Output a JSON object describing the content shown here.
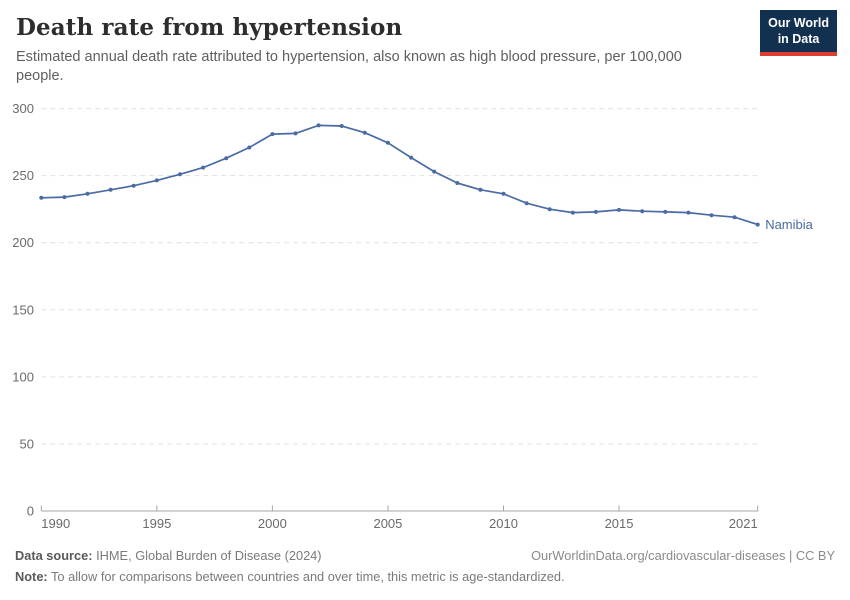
{
  "header": {
    "title": "Death rate from hypertension",
    "subtitle": "Estimated annual death rate attributed to hypertension, also known as high blood pressure, per 100,000 people."
  },
  "logo": {
    "line1": "Our World",
    "line2": "in Data",
    "bg_color": "#12304f",
    "accent_color": "#dc3e32"
  },
  "chart_data": {
    "type": "line",
    "title": "Death rate from hypertension",
    "xlabel": "",
    "ylabel": "",
    "x": [
      1990,
      1991,
      1992,
      1993,
      1994,
      1995,
      1996,
      1997,
      1998,
      1999,
      2000,
      2001,
      2002,
      2003,
      2004,
      2005,
      2006,
      2007,
      2008,
      2009,
      2010,
      2011,
      2012,
      2013,
      2014,
      2015,
      2016,
      2017,
      2018,
      2019,
      2020,
      2021
    ],
    "series": [
      {
        "name": "Namibia",
        "color": "#4a6ba3",
        "values": [
          233.5,
          234,
          236.5,
          239.5,
          242.5,
          246.5,
          251,
          256,
          263,
          271,
          281,
          281.5,
          287.5,
          287,
          282,
          274.5,
          263.5,
          253,
          244.5,
          239.5,
          236.5,
          229.5,
          225,
          222.5,
          223,
          224.5,
          223.5,
          223,
          222.5,
          220.5,
          219,
          213.5
        ]
      }
    ],
    "xlim": [
      1990,
      2021
    ],
    "ylim": [
      0,
      300
    ],
    "xticks": [
      1990,
      1995,
      2000,
      2005,
      2010,
      2015,
      2021
    ],
    "yticks": [
      0,
      50,
      100,
      150,
      200,
      250,
      300
    ],
    "grid": "horizontal-dashed",
    "legend_position": "line-end-label",
    "line_color": "#4a6ba3",
    "grid_color": "#e1e1e1",
    "axis_color": "#a6a6a6",
    "tick_text_color": "#6b6b6b"
  },
  "footer": {
    "source_label": "Data source:",
    "source_value": " IHME, Global Burden of Disease (2024)",
    "link": "OurWorldinData.org/cardiovascular-diseases | CC BY",
    "note_label": "Note:",
    "note_value": " To allow for comparisons between countries and over time, this metric is age-standardized."
  }
}
